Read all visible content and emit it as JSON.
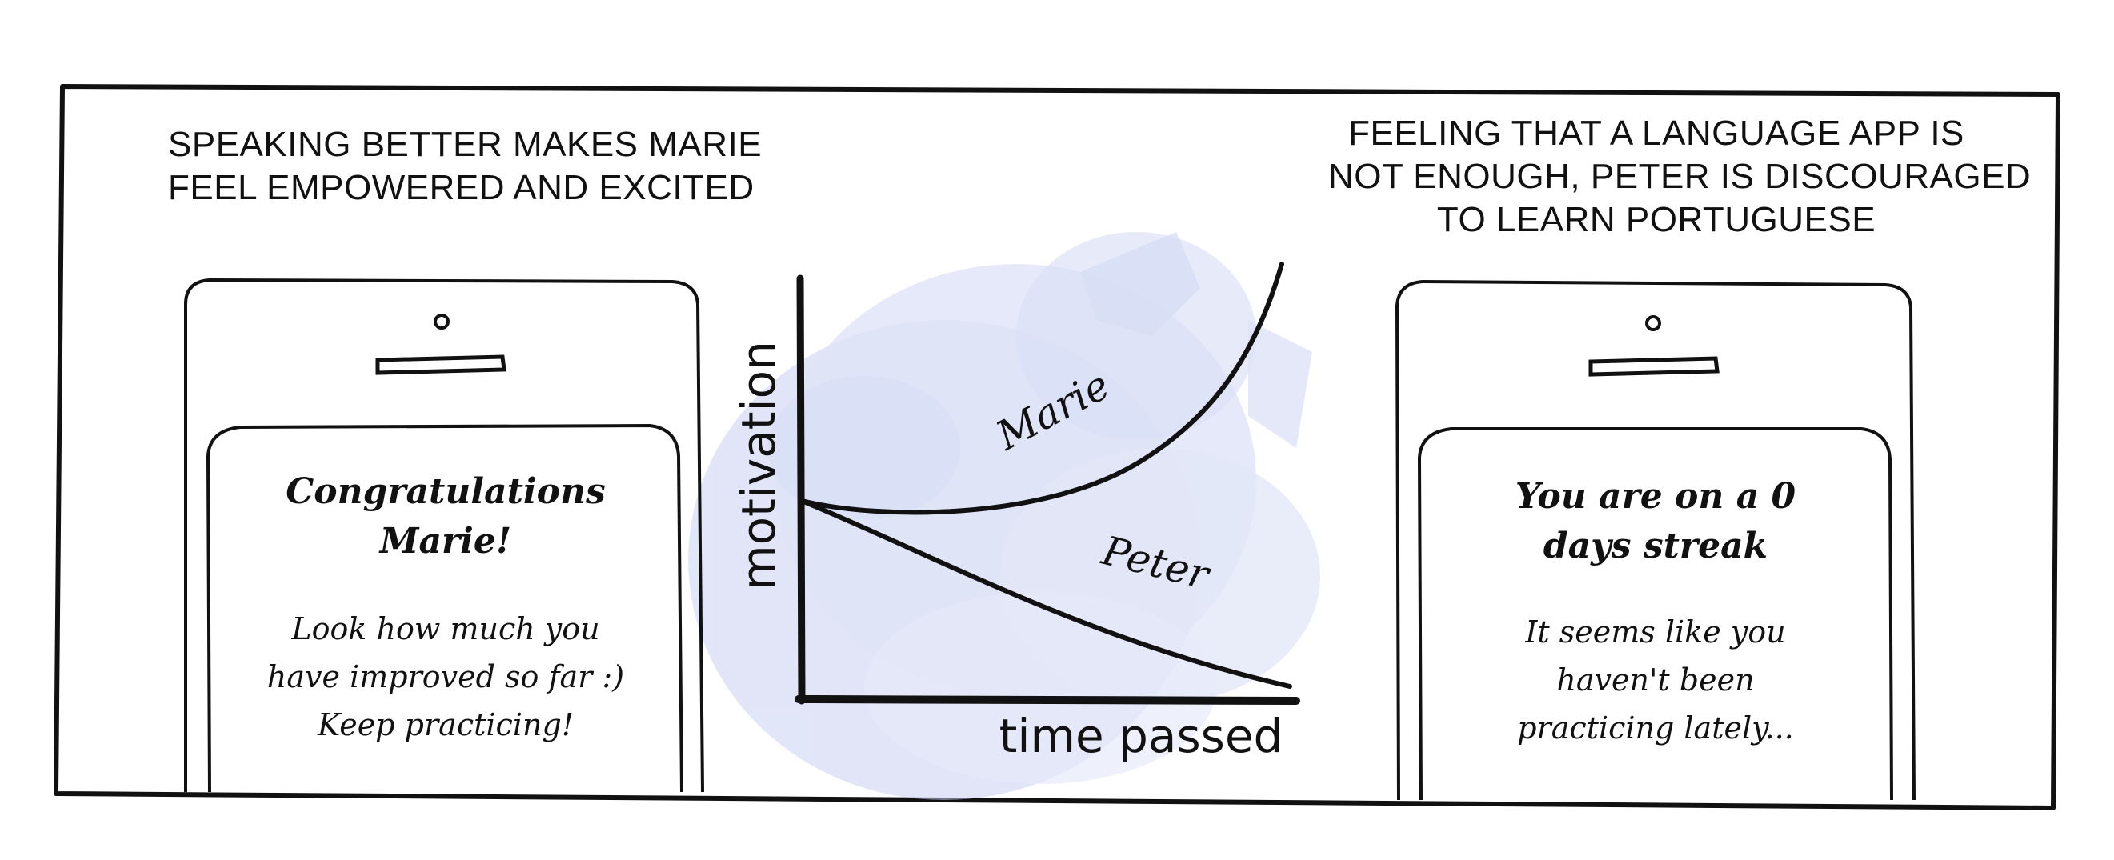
{
  "left_caption": {
    "lines": [
      "SPEAKING BETTER MAKES MARIE",
      "FEEL EMPOWERED AND EXCITED"
    ]
  },
  "right_caption": {
    "lines": [
      "FEELING THAT A LANGUAGE APP IS",
      "NOT ENOUGH, PETER IS DISCOURAGED",
      "TO LEARN PORTUGUESE"
    ]
  },
  "left_phone": {
    "title_lines": [
      "Congratulations",
      "Marie!"
    ],
    "body_lines": [
      "Look how much you",
      "have improved so far :)",
      "Keep practicing!"
    ]
  },
  "right_phone": {
    "title_lines": [
      "You are on a 0",
      "days streak"
    ],
    "body_lines": [
      "It seems like you",
      "haven't been",
      "practicing lately..."
    ]
  },
  "chart": {
    "y_label": "motivation",
    "x_label": "time passed",
    "curves": [
      {
        "name": "Marie",
        "trend": "rising"
      },
      {
        "name": "Peter",
        "trend": "falling"
      }
    ]
  },
  "colors": {
    "ink": "#111111",
    "wash": "#c4cdf0"
  }
}
